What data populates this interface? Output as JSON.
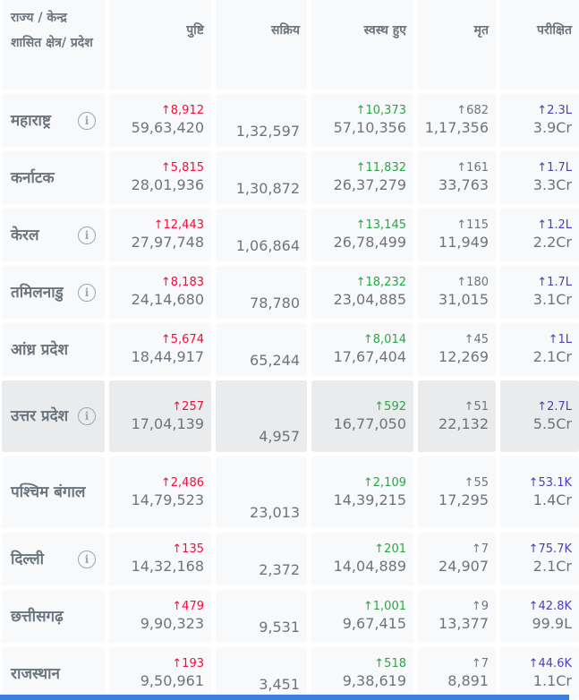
{
  "header": {
    "state": "राज्य / केन्द्र शासित क्षेत्र/ प्रदेश",
    "confirmed": "पुष्टि",
    "active": "सक्रिय",
    "recovered": "स्वस्थ हुए",
    "deceased": "मृत",
    "tested": "परीक्षित"
  },
  "rows": [
    {
      "state": "महाराष्ट्र",
      "info": true,
      "confirmed_delta": "↑8,912",
      "confirmed": "59,63,420",
      "active": "1,32,597",
      "recovered_delta": "↑10,373",
      "recovered": "57,10,356",
      "deceased_delta": "↑682",
      "deceased": "1,17,356",
      "tested_delta": "↑2.3L",
      "tested": "3.9Cr"
    },
    {
      "state": "कर्नाटक",
      "info": false,
      "confirmed_delta": "↑5,815",
      "confirmed": "28,01,936",
      "active": "1,30,872",
      "recovered_delta": "↑11,832",
      "recovered": "26,37,279",
      "deceased_delta": "↑161",
      "deceased": "33,763",
      "tested_delta": "↑1.7L",
      "tested": "3.3Cr"
    },
    {
      "state": "केरल",
      "info": true,
      "confirmed_delta": "↑12,443",
      "confirmed": "27,97,748",
      "active": "1,06,864",
      "recovered_delta": "↑13,145",
      "recovered": "26,78,499",
      "deceased_delta": "↑115",
      "deceased": "11,949",
      "tested_delta": "↑1.2L",
      "tested": "2.2Cr"
    },
    {
      "state": "तमिलनाडु",
      "info": true,
      "confirmed_delta": "↑8,183",
      "confirmed": "24,14,680",
      "active": "78,780",
      "recovered_delta": "↑18,232",
      "recovered": "23,04,885",
      "deceased_delta": "↑180",
      "deceased": "31,015",
      "tested_delta": "↑1.7L",
      "tested": "3.1Cr"
    },
    {
      "state": "आंध्र प्रदेश",
      "info": false,
      "confirmed_delta": "↑5,674",
      "confirmed": "18,44,917",
      "active": "65,244",
      "recovered_delta": "↑8,014",
      "recovered": "17,67,404",
      "deceased_delta": "↑45",
      "deceased": "12,269",
      "tested_delta": "↑1L",
      "tested": "2.1Cr"
    },
    {
      "state": "उत्तर प्रदेश",
      "info": true,
      "confirmed_delta": "↑257",
      "confirmed": "17,04,139",
      "active": "4,957",
      "recovered_delta": "↑592",
      "recovered": "16,77,050",
      "deceased_delta": "↑51",
      "deceased": "22,132",
      "tested_delta": "↑2.7L",
      "tested": "5.5Cr"
    },
    {
      "state": "पश्चिम बंगाल",
      "info": false,
      "confirmed_delta": "↑2,486",
      "confirmed": "14,79,523",
      "active": "23,013",
      "recovered_delta": "↑2,109",
      "recovered": "14,39,215",
      "deceased_delta": "↑55",
      "deceased": "17,295",
      "tested_delta": "↑53.1K",
      "tested": "1.4Cr"
    },
    {
      "state": "दिल्ली",
      "info": true,
      "confirmed_delta": "↑135",
      "confirmed": "14,32,168",
      "active": "2,372",
      "recovered_delta": "↑201",
      "recovered": "14,04,889",
      "deceased_delta": "↑7",
      "deceased": "24,907",
      "tested_delta": "↑75.7K",
      "tested": "2.1Cr"
    },
    {
      "state": "छत्तीसगढ़",
      "info": false,
      "confirmed_delta": "↑479",
      "confirmed": "9,90,323",
      "active": "9,531",
      "recovered_delta": "↑1,001",
      "recovered": "9,67,415",
      "deceased_delta": "↑9",
      "deceased": "13,377",
      "tested_delta": "↑42.8K",
      "tested": "99.9L"
    },
    {
      "state": "राजस्थान",
      "info": false,
      "confirmed_delta": "↑193",
      "confirmed": "9,50,961",
      "active": "3,451",
      "recovered_delta": "↑518",
      "recovered": "9,38,619",
      "deceased_delta": "↑7",
      "deceased": "8,891",
      "tested_delta": "↑44.6K",
      "tested": "1.1Cr"
    }
  ],
  "colors": {
    "confirmed_delta": "#ff073a",
    "recovered_delta": "#28a745",
    "deceased_delta": "#6c757d",
    "tested_delta": "#4a3fbd"
  }
}
